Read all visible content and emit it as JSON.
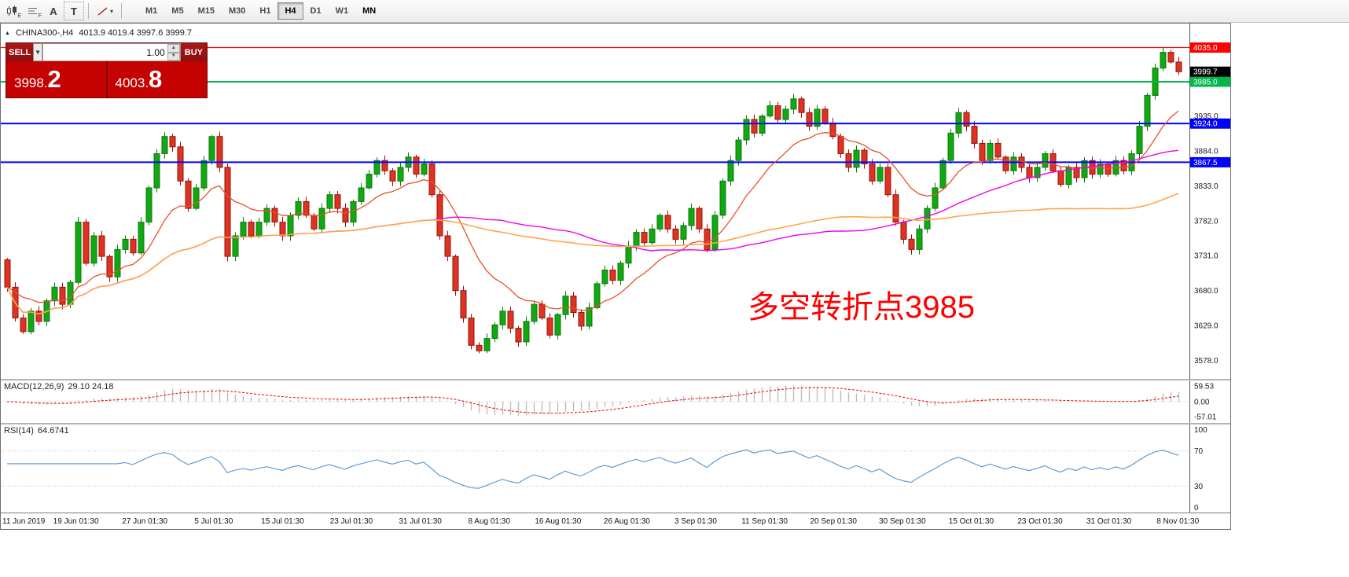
{
  "toolbar": {
    "icon_subs": [
      "E",
      "F"
    ],
    "text_tool": "A",
    "template_tool": "T",
    "timeframes": [
      {
        "label": "M1"
      },
      {
        "label": "M5"
      },
      {
        "label": "M15"
      },
      {
        "label": "M30"
      },
      {
        "label": "H1"
      },
      {
        "label": "H4",
        "active": true
      },
      {
        "label": "D1"
      },
      {
        "label": "W1"
      },
      {
        "label": "MN",
        "bold": true
      }
    ]
  },
  "chart_header": {
    "symbol": "CHINA300-,H4",
    "ohlc": "4013.9 4019.4 3997.6 3999.7"
  },
  "trade_panel": {
    "sell_label": "SELL",
    "buy_label": "BUY",
    "volume": "1.00",
    "sell_price_main": "3998.",
    "sell_price_big": "2",
    "buy_price_main": "4003.",
    "buy_price_big": "8"
  },
  "annotation": {
    "text": "多空转折点3985",
    "color": "#ff0000"
  },
  "panes": {
    "macd_name": "MACD(12,26,9)",
    "macd_values": "29.10 24.18",
    "rsi_name": "RSI(14)",
    "rsi_value": "64.6741"
  },
  "chart_data": {
    "type": "candlestick",
    "symbol": "CHINA300-",
    "timeframe": "H4",
    "last_bar": {
      "open": 4013.9,
      "high": 4019.4,
      "low": 3997.6,
      "close": 3999.7
    },
    "first_open": 3725,
    "closes": [
      3685,
      3640,
      3620,
      3650,
      3635,
      3665,
      3685,
      3660,
      3692,
      3780,
      3720,
      3760,
      3730,
      3700,
      3740,
      3755,
      3735,
      3780,
      3830,
      3880,
      3905,
      3890,
      3840,
      3800,
      3830,
      3870,
      3905,
      3860,
      3730,
      3760,
      3780,
      3760,
      3780,
      3800,
      3780,
      3760,
      3790,
      3810,
      3790,
      3770,
      3800,
      3820,
      3800,
      3780,
      3810,
      3830,
      3850,
      3870,
      3855,
      3840,
      3860,
      3875,
      3850,
      3865,
      3820,
      3760,
      3730,
      3680,
      3640,
      3600,
      3592,
      3610,
      3630,
      3650,
      3625,
      3605,
      3635,
      3660,
      3640,
      3615,
      3645,
      3672,
      3648,
      3628,
      3655,
      3690,
      3710,
      3695,
      3720,
      3745,
      3765,
      3750,
      3770,
      3790,
      3770,
      3755,
      3775,
      3800,
      3770,
      3740,
      3790,
      3840,
      3870,
      3900,
      3930,
      3910,
      3935,
      3950,
      3930,
      3945,
      3960,
      3940,
      3920,
      3945,
      3925,
      3905,
      3880,
      3860,
      3885,
      3865,
      3840,
      3860,
      3820,
      3780,
      3755,
      3740,
      3770,
      3800,
      3830,
      3870,
      3910,
      3940,
      3920,
      3895,
      3870,
      3895,
      3875,
      3855,
      3875,
      3860,
      3845,
      3860,
      3880,
      3855,
      3835,
      3860,
      3845,
      3870,
      3850,
      3865,
      3850,
      3870,
      3855,
      3880,
      3920,
      3965,
      4005,
      4028,
      4013.9,
      3999.7
    ],
    "ylim": [
      3551,
      4070
    ],
    "price_ticks": [
      3935.0,
      3884.0,
      3833.0,
      3782.0,
      3731.0,
      3680.0,
      3629.0,
      3578.0
    ],
    "hlines": [
      {
        "price": 4035.0,
        "label": "4035.0",
        "color": "#ff0000",
        "width": 1.2
      },
      {
        "price": 3985.0,
        "label": "3985.0",
        "color": "#00b84c",
        "width": 2
      },
      {
        "price": 3924.0,
        "label": "3924.0",
        "color": "#0000ff",
        "width": 2
      },
      {
        "price": 3867.5,
        "label": "3867.5",
        "color": "#0000ff",
        "width": 2
      }
    ],
    "current_price": {
      "value": 3999.7,
      "label": "3999.7",
      "bg": "#000000"
    },
    "up_color": "#11a811",
    "up_border": "#0c7a0c",
    "down_color": "#dd3322",
    "down_border": "#991108",
    "moving_averages": [
      {
        "name": "fast-ma",
        "type": "ema",
        "period": 13,
        "color": "#e8502a",
        "width": 1.3
      },
      {
        "name": "mid-ma",
        "type": "sma",
        "period": 55,
        "color": "#ee00ee",
        "width": 1.4
      },
      {
        "name": "slow-ma",
        "type": "sma",
        "period": 89,
        "color": "#ffa64d",
        "width": 1.6
      }
    ],
    "macd": {
      "fast": 12,
      "slow": 26,
      "signal": 9,
      "scale_max": 80,
      "hist_color": "#bcbcbc",
      "signal_color": "#ee0000",
      "ticks": [
        {
          "v": 59.53,
          "label": "59.53"
        },
        {
          "v": 0,
          "label": "0.00"
        },
        {
          "v": -57.01,
          "label": "-57.01"
        }
      ]
    },
    "rsi": {
      "period": 14,
      "color": "#4f94d4",
      "levels": [
        70,
        30
      ],
      "ticks": [
        {
          "v": 100,
          "label": "100"
        },
        {
          "v": 70,
          "label": "70"
        },
        {
          "v": 30,
          "label": "30"
        },
        {
          "v": 0,
          "label": "0"
        }
      ]
    },
    "time_labels": [
      "11 Jun 2019",
      "19 Jun 01:30",
      "27 Jun 01:30",
      "5 Jul 01:30",
      "15 Jul 01:30",
      "23 Jul 01:30",
      "31 Jul 01:30",
      "8 Aug 01:30",
      "16 Aug 01:30",
      "26 Aug 01:30",
      "3 Sep 01:30",
      "11 Sep 01:30",
      "20 Sep 01:30",
      "30 Sep 01:30",
      "15 Oct 01:30",
      "23 Oct 01:30",
      "31 Oct 01:30",
      "8 Nov 01:30"
    ]
  }
}
